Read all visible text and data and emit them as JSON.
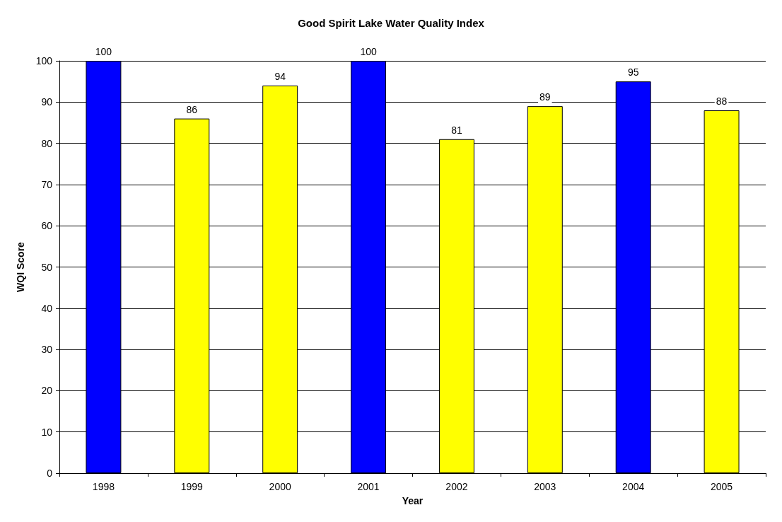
{
  "chart_data": {
    "type": "bar",
    "title": "Good Spirit Lake Water Quality Index",
    "xlabel": "Year",
    "ylabel": "WQI Score",
    "categories": [
      "1998",
      "1999",
      "2000",
      "2001",
      "2002",
      "2003",
      "2004",
      "2005"
    ],
    "values": [
      100,
      86,
      94,
      100,
      81,
      89,
      95,
      88
    ],
    "colors": [
      "#0000ff",
      "#ffff00",
      "#ffff00",
      "#0000ff",
      "#ffff00",
      "#ffff00",
      "#0000ff",
      "#ffff00"
    ],
    "ylim": [
      0,
      100
    ],
    "yticks": [
      0,
      10,
      20,
      30,
      40,
      50,
      60,
      70,
      80,
      90,
      100
    ],
    "grid": "y",
    "data_labels": true
  }
}
